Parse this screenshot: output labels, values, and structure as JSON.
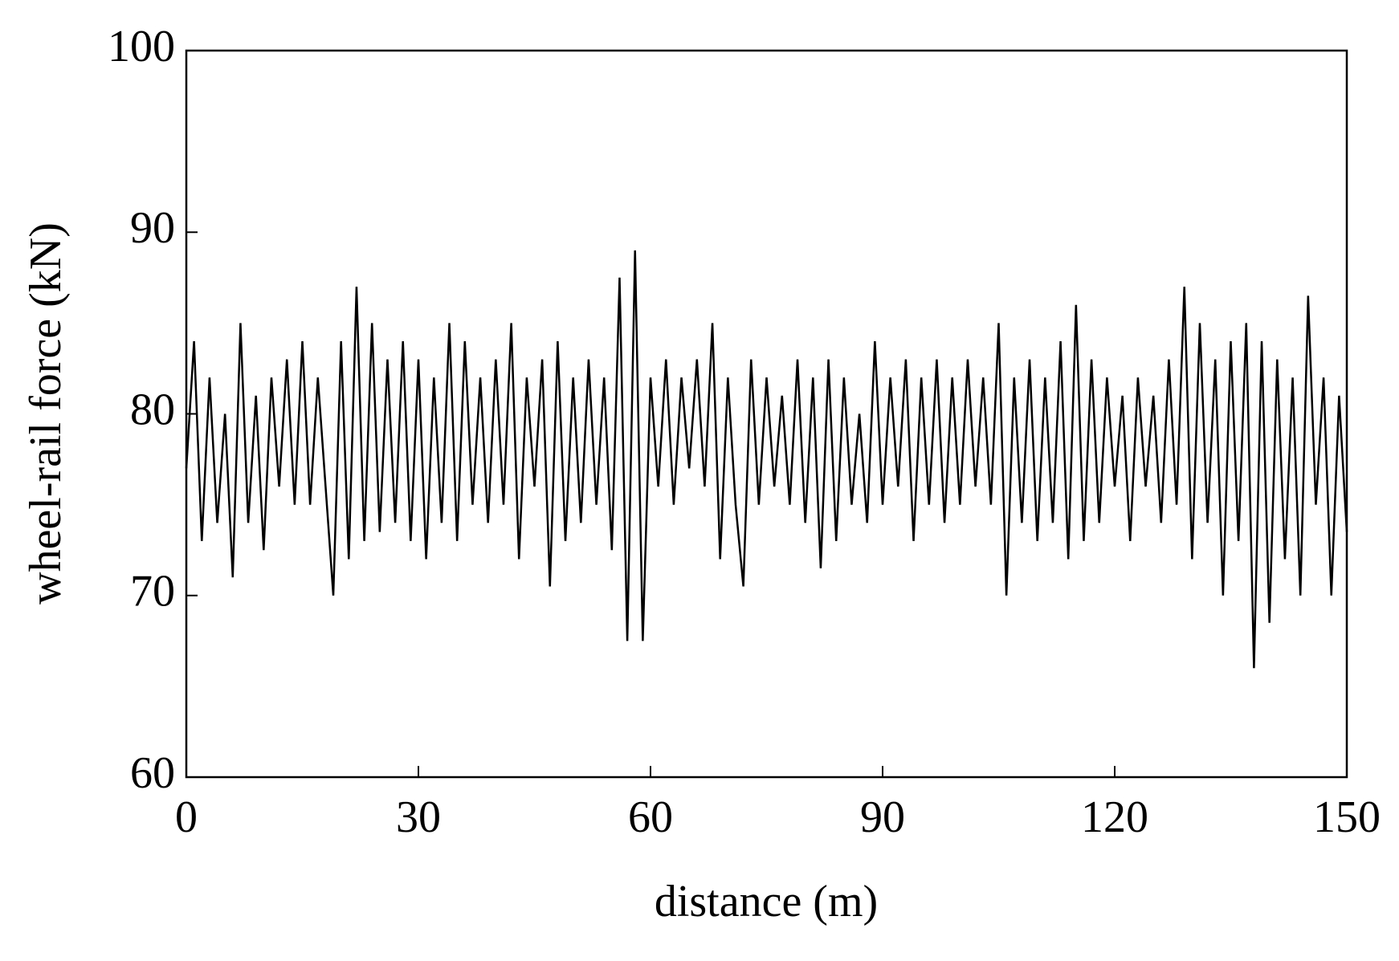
{
  "chart_data": {
    "type": "line",
    "xlabel": "distance (m)",
    "ylabel": "wheel-rail force (kN)",
    "xlim": [
      0,
      150
    ],
    "ylim": [
      60,
      100
    ],
    "xticks": [
      0,
      30,
      60,
      90,
      120,
      150
    ],
    "yticks": [
      60,
      70,
      80,
      90,
      100
    ],
    "x": [
      0,
      1,
      2,
      3,
      4,
      5,
      6,
      7,
      8,
      9,
      10,
      11,
      12,
      13,
      14,
      15,
      16,
      17,
      18,
      19,
      20,
      21,
      22,
      23,
      24,
      25,
      26,
      27,
      28,
      29,
      30,
      31,
      32,
      33,
      34,
      35,
      36,
      37,
      38,
      39,
      40,
      41,
      42,
      43,
      44,
      45,
      46,
      47,
      48,
      49,
      50,
      51,
      52,
      53,
      54,
      55,
      56,
      57,
      58,
      59,
      60,
      61,
      62,
      63,
      64,
      65,
      66,
      67,
      68,
      69,
      70,
      71,
      72,
      73,
      74,
      75,
      76,
      77,
      78,
      79,
      80,
      81,
      82,
      83,
      84,
      85,
      86,
      87,
      88,
      89,
      90,
      91,
      92,
      93,
      94,
      95,
      96,
      97,
      98,
      99,
      100,
      101,
      102,
      103,
      104,
      105,
      106,
      107,
      108,
      109,
      110,
      111,
      112,
      113,
      114,
      115,
      116,
      117,
      118,
      119,
      120,
      121,
      122,
      123,
      124,
      125,
      126,
      127,
      128,
      129,
      130,
      131,
      132,
      133,
      134,
      135,
      136,
      137,
      138,
      139,
      140,
      141,
      142,
      143,
      144,
      145,
      146,
      147,
      148,
      149,
      150
    ],
    "series": [
      {
        "name": "wheel-rail force",
        "color": "#000000",
        "values": [
          77,
          84,
          73,
          82,
          74,
          80,
          71,
          85,
          74,
          81,
          72.5,
          82,
          76,
          83,
          75,
          84,
          75,
          82,
          76,
          70,
          84,
          72,
          87,
          73,
          85,
          73.5,
          83,
          74,
          84,
          73,
          83,
          72,
          82,
          74,
          85,
          73,
          84,
          75,
          82,
          74,
          83,
          75,
          85,
          72,
          82,
          76,
          83,
          70.5,
          84,
          73,
          82,
          74,
          83,
          75,
          82,
          72.5,
          87.5,
          67.5,
          89,
          67.5,
          82,
          76,
          83,
          75,
          82,
          77,
          83,
          76,
          85,
          72,
          82,
          75,
          70.5,
          83,
          75,
          82,
          76,
          81,
          75,
          83,
          74,
          82,
          71.5,
          83,
          73,
          82,
          75,
          80,
          74,
          84,
          75,
          82,
          76,
          83,
          73,
          82,
          75,
          83,
          74,
          82,
          75,
          83,
          76,
          82,
          75,
          85,
          70,
          82,
          74,
          83,
          73,
          82,
          74,
          84,
          72,
          86,
          73,
          83,
          74,
          82,
          76,
          81,
          73,
          82,
          76,
          81,
          74,
          83,
          75,
          87,
          72,
          85,
          74,
          83,
          70,
          84,
          73,
          85,
          66,
          84,
          68.5,
          83,
          72,
          82,
          70,
          86.5,
          75,
          82,
          70,
          81,
          73.5
        ]
      }
    ]
  }
}
